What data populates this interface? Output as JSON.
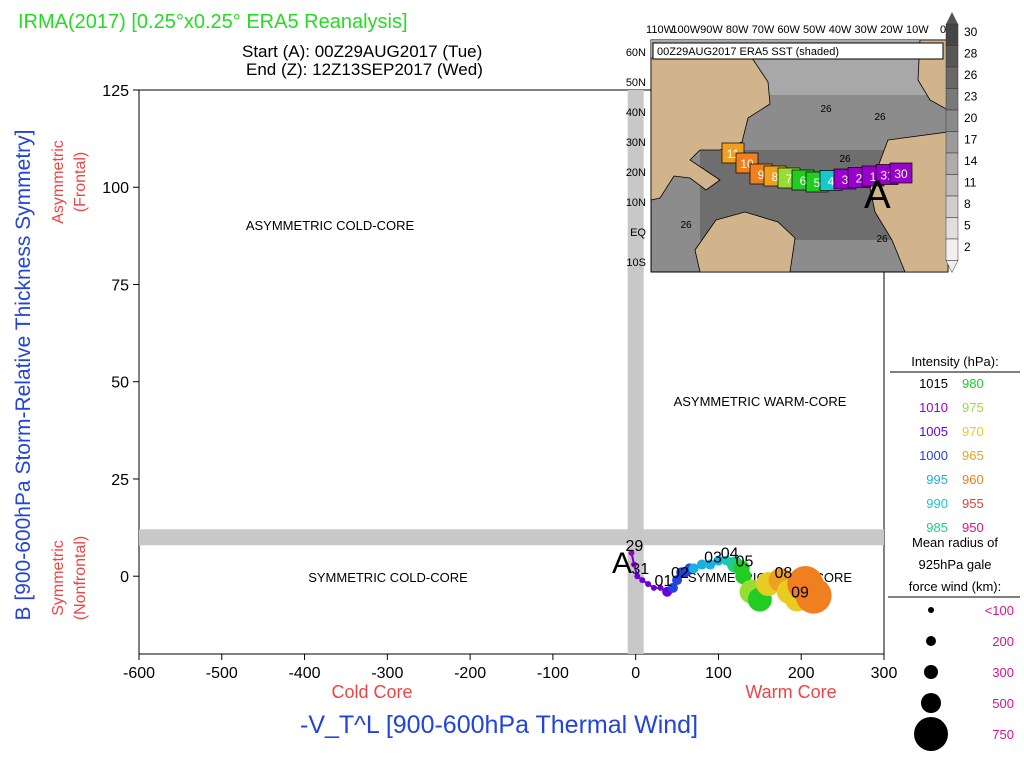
{
  "header": {
    "title": "IRMA(2017) [0.25°x0.25° ERA5 Reanalysis]",
    "start_label": "Start (A): 00Z29AUG2017 (Tue)",
    "end_label": "End (Z): 12Z13SEP2017 (Wed)"
  },
  "chart_data": {
    "type": "scatter",
    "xlabel": "-V_T^L [900-600hPa Thermal Wind]",
    "ylabel": "B [900-600hPa Storm-Relative Thickness Symmetry]",
    "x_ticks": [
      "-600",
      "-500",
      "-400",
      "-300",
      "-200",
      "-100",
      "0",
      "100",
      "200",
      "300"
    ],
    "y_ticks": [
      "0",
      "25",
      "50",
      "75",
      "100",
      "125"
    ],
    "xlim": [
      -600,
      300
    ],
    "ylim": [
      -20,
      125
    ],
    "x_side_labels": {
      "cold": "Cold Core",
      "warm": "Warm Core"
    },
    "y_side_labels": {
      "asym": "Asymmetric",
      "asym_sub": "(Frontal)",
      "sym": "Symmetric",
      "sym_sub": "(Nonfrontal)"
    },
    "quadrants": {
      "acc": "ASYMMETRIC COLD-CORE",
      "awc": "ASYMMETRIC WARM-CORE",
      "scc": "SYMMETRIC COLD-CORE",
      "swc": "SYMMETRIC WARM-CORE"
    },
    "reference_band": {
      "x": 0,
      "y": 10
    },
    "start_marker": "A",
    "track_labels": [
      "29",
      "31",
      "01",
      "02",
      "03",
      "04",
      "05",
      "08",
      "09"
    ],
    "track": [
      {
        "x": -5,
        "y": 6,
        "p": 1010,
        "r": 100
      },
      {
        "x": -2,
        "y": 3,
        "p": 1008,
        "r": 100
      },
      {
        "x": 2,
        "y": 0,
        "p": 1006,
        "r": 100
      },
      {
        "x": 8,
        "y": -1,
        "p": 1005,
        "r": 100
      },
      {
        "x": 15,
        "y": -2,
        "p": 1005,
        "r": 100
      },
      {
        "x": 22,
        "y": -3,
        "p": 1004,
        "r": 100
      },
      {
        "x": 30,
        "y": -3,
        "p": 1004,
        "r": 100
      },
      {
        "x": 38,
        "y": -4,
        "p": 1003,
        "r": 150
      },
      {
        "x": 45,
        "y": -3,
        "p": 1002,
        "r": 200
      },
      {
        "x": 50,
        "y": -1,
        "p": 1002,
        "r": 200
      },
      {
        "x": 55,
        "y": 1,
        "p": 1001,
        "r": 200
      },
      {
        "x": 60,
        "y": 1,
        "p": 1000,
        "r": 200
      },
      {
        "x": 65,
        "y": 2,
        "p": 998,
        "r": 200
      },
      {
        "x": 70,
        "y": 2,
        "p": 997,
        "r": 200
      },
      {
        "x": 80,
        "y": 3,
        "p": 996,
        "r": 200
      },
      {
        "x": 90,
        "y": 3,
        "p": 995,
        "r": 200
      },
      {
        "x": 100,
        "y": 4,
        "p": 993,
        "r": 200
      },
      {
        "x": 110,
        "y": 4,
        "p": 990,
        "r": 200
      },
      {
        "x": 120,
        "y": 3,
        "p": 985,
        "r": 300
      },
      {
        "x": 128,
        "y": 2,
        "p": 982,
        "r": 300
      },
      {
        "x": 130,
        "y": 0,
        "p": 980,
        "r": 300
      },
      {
        "x": 140,
        "y": -4,
        "p": 975,
        "r": 500
      },
      {
        "x": 150,
        "y": -6,
        "p": 978,
        "r": 500
      },
      {
        "x": 160,
        "y": -2,
        "p": 970,
        "r": 500
      },
      {
        "x": 175,
        "y": -1,
        "p": 965,
        "r": 500
      },
      {
        "x": 185,
        "y": -4,
        "p": 968,
        "r": 500
      },
      {
        "x": 195,
        "y": -6,
        "p": 970,
        "r": 500
      },
      {
        "x": 205,
        "y": -2,
        "p": 962,
        "r": 750
      },
      {
        "x": 215,
        "y": -5,
        "p": 960,
        "r": 750
      }
    ],
    "legend": {
      "intensity_title": "Intensity (hPa):",
      "intensity": [
        {
          "v": "1015",
          "color": "#000000"
        },
        {
          "v": "980",
          "color": "#22cc22"
        },
        {
          "v": "1010",
          "color": "#9900cc"
        },
        {
          "v": "975",
          "color": "#99dd33"
        },
        {
          "v": "1005",
          "color": "#6a00dd"
        },
        {
          "v": "970",
          "color": "#e8cc22"
        },
        {
          "v": "1000",
          "color": "#2244dd"
        },
        {
          "v": "965",
          "color": "#f0a020"
        },
        {
          "v": "995",
          "color": "#1ab0e0"
        },
        {
          "v": "960",
          "color": "#f07f20"
        },
        {
          "v": "990",
          "color": "#18c8c8"
        },
        {
          "v": "955",
          "color": "#e04040"
        },
        {
          "v": "985",
          "color": "#22cc88"
        },
        {
          "v": "950",
          "color": "#dd1188"
        }
      ],
      "radius_title": [
        "Mean radius of",
        "925hPa gale",
        "force wind (km):"
      ],
      "radius": [
        "<100",
        "200",
        "300",
        "500",
        "750"
      ]
    }
  },
  "inset": {
    "title": "00Z29AUG2017 ERA5 SST (shaded)",
    "lon_labels": [
      "110W",
      "100W",
      "90W",
      "80W",
      "70W",
      "60W",
      "50W",
      "40W",
      "30W",
      "20W",
      "10W",
      "0"
    ],
    "lat_labels": [
      "60N",
      "50N",
      "40N",
      "30N",
      "20N",
      "10N",
      "EQ",
      "10S"
    ],
    "contour_labels": [
      "26",
      "26",
      "26",
      "26",
      "26"
    ],
    "colorbar_ticks": [
      "30",
      "28",
      "26",
      "23",
      "20",
      "17",
      "14",
      "11",
      "8",
      "5",
      "2"
    ],
    "map_track": [
      "11",
      "10",
      "9",
      "8",
      "7",
      "6",
      "5",
      "4",
      "3",
      "2",
      "1",
      "31",
      "30"
    ],
    "start_marker": "A"
  },
  "colors": {
    "title": "#22dd22",
    "axis_blue": "#2244dd",
    "side_red": "#ee4444",
    "band": "#c8c8c8",
    "radius_text": "#dd1188"
  }
}
